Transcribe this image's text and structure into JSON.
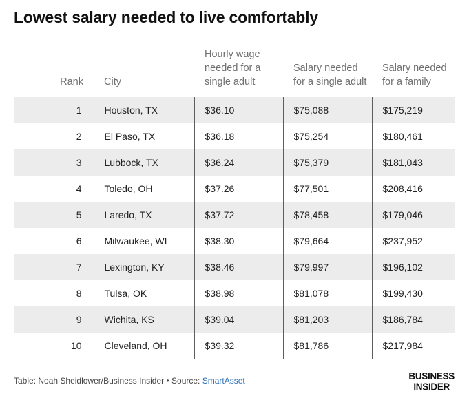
{
  "title": "Lowest salary needed to live comfortably",
  "chart_data": {
    "type": "table",
    "title": "Lowest salary needed to live comfortably",
    "columns": [
      "Rank",
      "City",
      "Hourly wage needed for a single adult",
      "Salary needed for a single adult",
      "Salary needed for a family"
    ],
    "rows": [
      [
        "1",
        "Houston, TX",
        "$36.10",
        "$75,088",
        "$175,219"
      ],
      [
        "2",
        "El Paso, TX",
        "$36.18",
        "$75,254",
        "$180,461"
      ],
      [
        "3",
        "Lubbock, TX",
        "$36.24",
        "$75,379",
        "$181,043"
      ],
      [
        "4",
        "Toledo, OH",
        "$37.26",
        "$77,501",
        "$208,416"
      ],
      [
        "5",
        "Laredo, TX",
        "$37.72",
        "$78,458",
        "$179,046"
      ],
      [
        "6",
        "Milwaukee, WI",
        "$38.30",
        "$79,664",
        "$237,952"
      ],
      [
        "7",
        "Lexington, KY",
        "$38.46",
        "$79,997",
        "$196,102"
      ],
      [
        "8",
        "Tulsa, OK",
        "$38.98",
        "$81,078",
        "$199,430"
      ],
      [
        "9",
        "Wichita, KS",
        "$39.04",
        "$81,203",
        "$186,784"
      ],
      [
        "10",
        "Cleveland, OH",
        "$39.32",
        "$81,786",
        "$217,984"
      ]
    ]
  },
  "footer": {
    "table_label": "Table:",
    "table_credit": "Noah Sheidlower/Business Insider",
    "separator": "•",
    "source_label": "Source:",
    "source_name": "SmartAsset"
  },
  "logo": {
    "line1": "BUSINESS",
    "line2": "INSIDER"
  },
  "colors": {
    "stripe": "#ececec",
    "header_text": "#707070",
    "link": "#2a6fb5",
    "divider": "#5e5e5e"
  }
}
